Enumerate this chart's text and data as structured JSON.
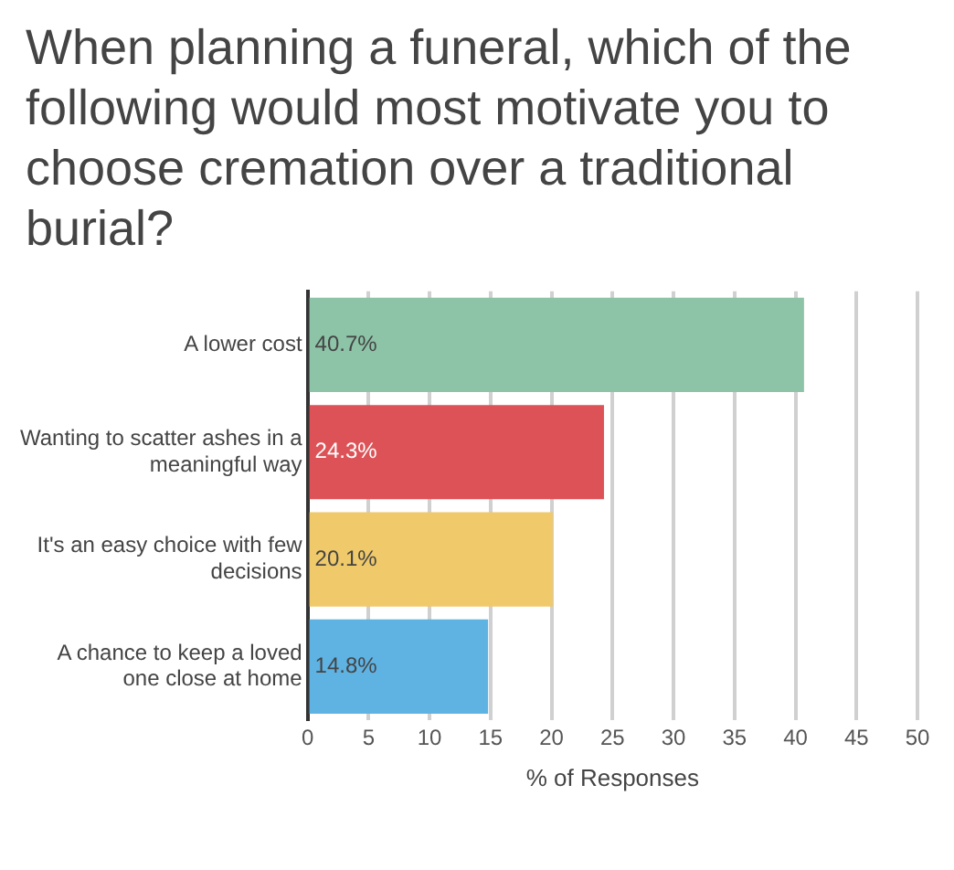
{
  "chart_data": {
    "type": "bar",
    "orientation": "horizontal",
    "title": "When planning a funeral, which of the following would most motivate you to choose cremation over a traditional burial?",
    "xlabel": "% of Responses",
    "categories": [
      "A lower cost",
      "Wanting to scatter ashes in a meaningful way",
      "It's an easy choice with few decisions",
      "A chance to keep a loved one close at home"
    ],
    "values": [
      40.7,
      24.3,
      20.1,
      14.8
    ],
    "colors": [
      "#8dc3a7",
      "#dc5257",
      "#efc96a",
      "#5fb3e3"
    ],
    "value_labels": [
      "40.7%",
      "24.3%",
      "20.1%",
      "14.8%"
    ],
    "xlim": [
      0,
      50
    ],
    "xticks": [
      0,
      5,
      10,
      15,
      20,
      25,
      30,
      35,
      40,
      45,
      50
    ],
    "grid": "x"
  }
}
